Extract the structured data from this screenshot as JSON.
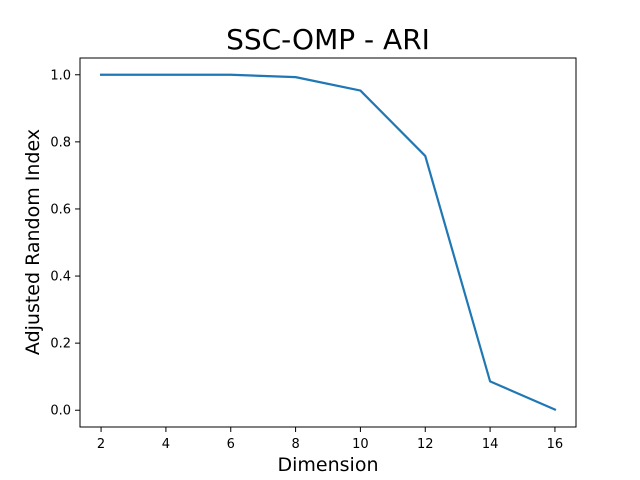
{
  "chart_data": {
    "type": "line",
    "title": "SSC-OMP - ARI",
    "xlabel": "Dimension",
    "ylabel": "Adjusted Random Index",
    "xlim": [
      1.35,
      16.65
    ],
    "ylim": [
      -0.05,
      1.05
    ],
    "x_ticks": [
      2,
      4,
      6,
      8,
      10,
      12,
      14,
      16
    ],
    "y_ticks": [
      0.0,
      0.2,
      0.4,
      0.6,
      0.8,
      1.0
    ],
    "grid": false,
    "legend": "none",
    "series": [
      {
        "color": "#1f77b4",
        "x": [
          2,
          4,
          6,
          8,
          10,
          12,
          14,
          16
        ],
        "y": [
          1.0,
          1.0,
          1.0,
          0.993,
          0.953,
          0.758,
          0.086,
          0.002
        ]
      }
    ]
  }
}
